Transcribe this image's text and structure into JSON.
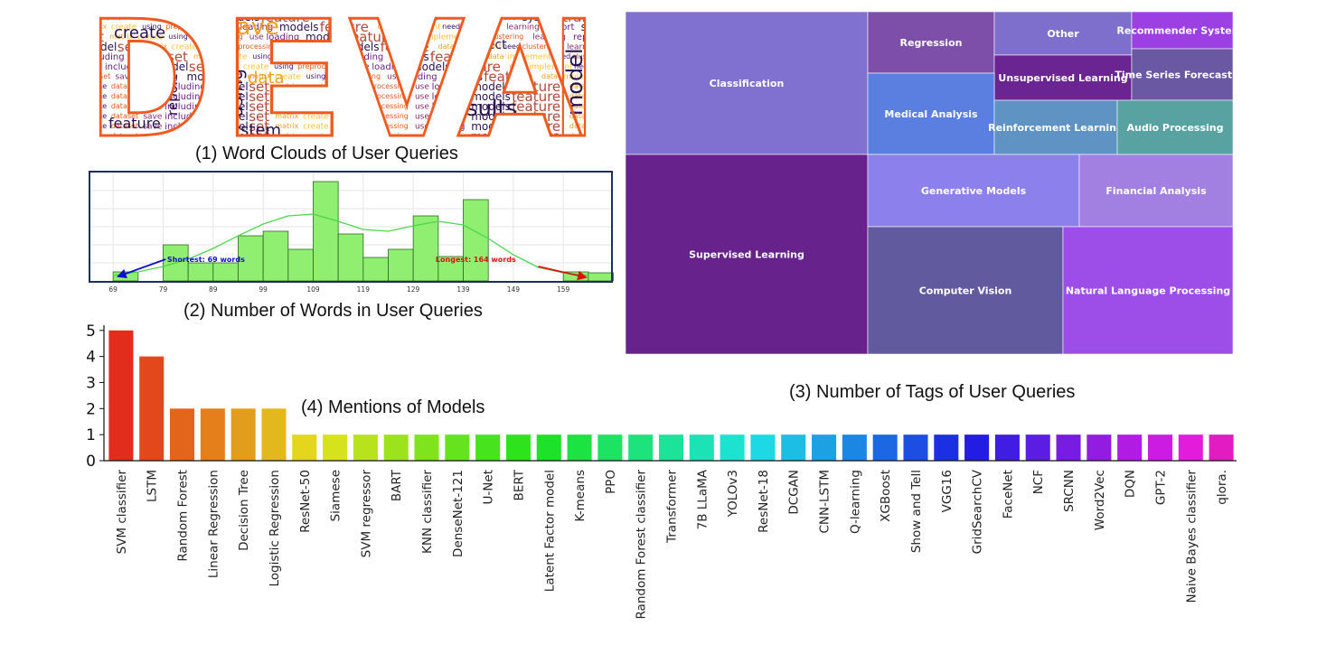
{
  "captions": {
    "wordcloud": "(1) Word Clouds of User Queries",
    "histogram": "(2) Number of Words in User Queries",
    "treemap": "(3) Number of Tags of User Queries",
    "models": "(4) Mentions of Models"
  },
  "wordcloud": {
    "letters": [
      "D",
      "E",
      "V",
      "A",
      "I"
    ],
    "outline_color": "#f05a1e",
    "words": [
      "dataset",
      "create",
      "feature",
      "report",
      "performance",
      "visualize",
      "load",
      "save",
      "using",
      "data",
      "system",
      "prediction",
      "project",
      "results",
      "including",
      "preprocessing",
      "implement",
      "training",
      "implemented",
      "generate",
      "process",
      "model",
      "use",
      "need",
      "help",
      "images",
      "analysis",
      "classifier",
      "set",
      "loading",
      "clustering",
      "curve",
      "text",
      "markdown",
      "please",
      "matrix",
      "models",
      "learning",
      "features",
      "test",
      "audio"
    ]
  },
  "chart_data": [
    {
      "type": "bar",
      "title": "(2) Number of Words in User Queries",
      "x_tick_labels": [
        "69",
        "79",
        "89",
        "99",
        "109",
        "119",
        "129",
        "139",
        "149",
        "159"
      ],
      "bin_width": 5,
      "bins": [
        {
          "x0": 69,
          "value": 1
        },
        {
          "x0": 74,
          "value": 0
        },
        {
          "x0": 79,
          "value": 4
        },
        {
          "x0": 84,
          "value": 2
        },
        {
          "x0": 89,
          "value": 2
        },
        {
          "x0": 94,
          "value": 5
        },
        {
          "x0": 99,
          "value": 5.5
        },
        {
          "x0": 104,
          "value": 3.5
        },
        {
          "x0": 109,
          "value": 11
        },
        {
          "x0": 114,
          "value": 5.2
        },
        {
          "x0": 119,
          "value": 2.6
        },
        {
          "x0": 124,
          "value": 3.5
        },
        {
          "x0": 129,
          "value": 7.2
        },
        {
          "x0": 134,
          "value": 2.7
        },
        {
          "x0": 139,
          "value": 9
        },
        {
          "x0": 144,
          "value": 0
        },
        {
          "x0": 149,
          "value": 0
        },
        {
          "x0": 154,
          "value": 0
        },
        {
          "x0": 159,
          "value": 1
        },
        {
          "x0": 164,
          "value": 0.9
        }
      ],
      "kde": [
        [
          69,
          0.6
        ],
        [
          74,
          1.0
        ],
        [
          79,
          1.6
        ],
        [
          84,
          2.4
        ],
        [
          89,
          3.6
        ],
        [
          94,
          5.0
        ],
        [
          99,
          6.3
        ],
        [
          104,
          7.2
        ],
        [
          109,
          7.4
        ],
        [
          114,
          6.6
        ],
        [
          119,
          5.7
        ],
        [
          124,
          5.5
        ],
        [
          129,
          6.1
        ],
        [
          134,
          6.6
        ],
        [
          139,
          6.2
        ],
        [
          144,
          4.7
        ],
        [
          149,
          2.9
        ],
        [
          154,
          1.5
        ],
        [
          159,
          0.9
        ],
        [
          164,
          0.6
        ]
      ],
      "ylim": [
        0,
        11.5
      ],
      "xlim": [
        65,
        168
      ],
      "annotations": [
        {
          "label": "Shortest: 69 words",
          "color": "#1010c8",
          "value": 69
        },
        {
          "label": "Longest: 164 words",
          "color": "#e01010",
          "value": 164
        }
      ],
      "colors": {
        "bar": "#90ee70",
        "bar_edge": "#2a6a20",
        "kde": "#4cd64c",
        "frame": "#1a3160"
      }
    },
    {
      "type": "treemap",
      "title": "(3) Number of Tags of User Queries",
      "items": [
        {
          "label": "Classification",
          "color": "#8070d0"
        },
        {
          "label": "Supervised Learning",
          "color": "#67228c"
        },
        {
          "label": "Regression",
          "color": "#7e4fa8"
        },
        {
          "label": "Other",
          "color": "#7f6fcc"
        },
        {
          "label": "Recommender Systems",
          "color": "#9c40e4"
        },
        {
          "label": "Unsupervised Learning",
          "color": "#6a2592"
        },
        {
          "label": "Time Series Forecasting",
          "color": "#6a58a2"
        },
        {
          "label": "Medical Analysis",
          "color": "#5a7fe0"
        },
        {
          "label": "Reinforcement Learning",
          "color": "#5e93c4"
        },
        {
          "label": "Audio Processing",
          "color": "#58a2a2"
        },
        {
          "label": "Generative Models",
          "color": "#8b80ec"
        },
        {
          "label": "Financial Analysis",
          "color": "#a180e2"
        },
        {
          "label": "Computer Vision",
          "color": "#625a9e"
        },
        {
          "label": "Natural Language Processing",
          "color": "#9e4ee8"
        }
      ]
    },
    {
      "type": "bar",
      "title": "(4) Mentions of Models",
      "categories": [
        "SVM classifier",
        "LSTM",
        "Random Forest",
        "Linear Regression",
        "Decision Tree",
        "Logistic Regression",
        "ResNet-50",
        "Siamese",
        "SVM regressor",
        "BART",
        "KNN classifier",
        "DenseNet-121",
        "U-Net",
        "BERT",
        "Latent Factor model",
        "K-means",
        "PPO",
        "Random Forest classifier",
        "Transformer",
        "7B LLaMA",
        "YOLOv3",
        "ResNet-18",
        "DCGAN",
        "CNN-LSTM",
        "Q-learning",
        "XGBoost",
        "Show and Tell",
        "VGG16",
        "GridSearchCV",
        "FaceNet",
        "NCF",
        "SRCNN",
        "Word2Vec",
        "DQN",
        "GPT-2",
        "Naive Bayes classifier",
        "qlora."
      ],
      "values": [
        5,
        4,
        2,
        2,
        2,
        2,
        1,
        1,
        1,
        1,
        1,
        1,
        1,
        1,
        1,
        1,
        1,
        1,
        1,
        1,
        1,
        1,
        1,
        1,
        1,
        1,
        1,
        1,
        1,
        1,
        1,
        1,
        1,
        1,
        1,
        1,
        1
      ],
      "yticks": [
        "0",
        "1",
        "2",
        "3",
        "4",
        "5"
      ],
      "ylim": [
        0,
        5.2
      ],
      "colormap": "rainbow (red to magenta)"
    }
  ]
}
